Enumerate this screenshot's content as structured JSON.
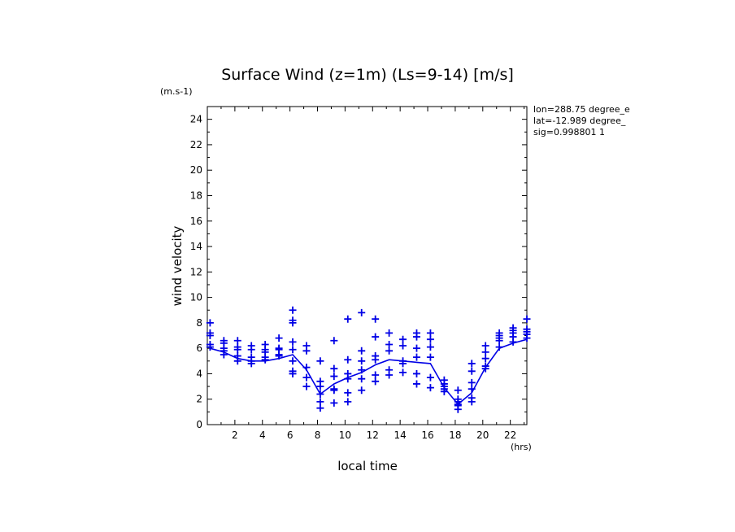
{
  "chart_data": {
    "type": "scatter",
    "title": "Surface Wind (z=1m) (Ls=9-14) [m/s]",
    "y_unit": "(m.s-1)",
    "x_unit": "(hrs)",
    "xlabel": "local time",
    "ylabel": "wind velocity",
    "info_lines": [
      "lon=288.75 degree_e",
      "lat=-12.989 degree_",
      "sig=0.998801 1"
    ],
    "xlim": [
      0,
      23.2
    ],
    "ylim": [
      0,
      25
    ],
    "x_ticks": [
      2,
      4,
      6,
      8,
      10,
      12,
      14,
      16,
      18,
      20,
      22
    ],
    "y_ticks": [
      0,
      2,
      4,
      6,
      8,
      10,
      12,
      14,
      16,
      18,
      20,
      22,
      24
    ],
    "grid": false,
    "color": "#0000e6",
    "series": [
      {
        "style": "line",
        "x": [
          0.2,
          1.2,
          2.2,
          3.2,
          4.2,
          5.2,
          6.2,
          7.2,
          8.2,
          9.2,
          10.2,
          11.2,
          12.2,
          13.2,
          14.2,
          15.2,
          16.2,
          17.2,
          18.2,
          19.2,
          20.2,
          21.2,
          22.2,
          23.2
        ],
        "y": [
          6.0,
          5.7,
          5.2,
          5.0,
          5.0,
          5.2,
          5.5,
          4.3,
          2.4,
          3.2,
          3.7,
          4.1,
          4.7,
          5.1,
          5.0,
          4.9,
          4.8,
          2.9,
          1.6,
          2.5,
          4.5,
          6.0,
          6.4,
          6.7
        ]
      },
      {
        "style": "markers",
        "x": [
          0.2,
          0.2,
          0.2,
          0.2,
          0.2,
          1.2,
          1.2,
          1.2,
          1.2,
          1.2,
          2.2,
          2.2,
          2.2,
          2.2,
          2.2,
          3.2,
          3.2,
          3.2,
          3.2,
          3.2,
          4.2,
          4.2,
          4.2,
          4.2,
          4.2,
          5.2,
          5.2,
          5.2,
          5.2,
          5.2,
          6.2,
          6.2,
          6.2,
          6.2,
          6.2,
          6.2,
          6.2,
          6.2,
          7.2,
          7.2,
          7.2,
          7.2,
          7.2,
          8.2,
          8.2,
          8.2,
          8.2,
          8.2,
          8.2,
          9.2,
          9.2,
          9.2,
          9.2,
          9.2,
          9.2,
          10.2,
          10.2,
          10.2,
          10.2,
          10.2,
          10.2,
          11.2,
          11.2,
          11.2,
          11.2,
          11.2,
          11.2,
          12.2,
          12.2,
          12.2,
          12.2,
          12.2,
          12.2,
          13.2,
          13.2,
          13.2,
          13.2,
          13.2,
          14.2,
          14.2,
          14.2,
          14.2,
          14.2,
          15.2,
          15.2,
          15.2,
          15.2,
          15.2,
          15.2,
          16.2,
          16.2,
          16.2,
          16.2,
          16.2,
          16.2,
          17.2,
          17.2,
          17.2,
          17.2,
          17.2,
          18.2,
          18.2,
          18.2,
          18.2,
          18.2,
          18.2,
          19.2,
          19.2,
          19.2,
          19.2,
          19.2,
          19.2,
          20.2,
          20.2,
          20.2,
          20.2,
          20.2,
          21.2,
          21.2,
          21.2,
          21.2,
          21.2,
          22.2,
          22.2,
          22.2,
          22.2,
          22.2,
          23.2,
          23.2,
          23.2,
          23.2,
          23.2
        ],
        "y": [
          8.0,
          7.2,
          7.0,
          6.3,
          6.1,
          6.6,
          6.4,
          6.0,
          5.8,
          5.5,
          6.6,
          6.1,
          5.9,
          5.4,
          5.0,
          6.2,
          5.9,
          5.3,
          5.0,
          4.8,
          6.3,
          5.9,
          5.7,
          5.3,
          5.1,
          6.8,
          6.0,
          5.9,
          5.5,
          5.4,
          9.0,
          8.2,
          8.0,
          6.5,
          5.9,
          5.0,
          4.2,
          4.0,
          6.2,
          5.8,
          4.5,
          3.7,
          3.0,
          5.0,
          3.4,
          3.0,
          2.4,
          1.8,
          1.3,
          6.6,
          4.4,
          3.8,
          2.8,
          2.7,
          1.7,
          8.3,
          5.1,
          4.0,
          3.6,
          2.5,
          1.8,
          8.8,
          5.8,
          5.0,
          4.3,
          3.6,
          2.7,
          8.3,
          6.9,
          5.4,
          5.1,
          3.9,
          3.4,
          7.2,
          6.3,
          5.8,
          4.3,
          3.9,
          6.7,
          6.2,
          5.0,
          4.8,
          4.1,
          7.2,
          6.9,
          6.0,
          5.3,
          4.0,
          3.2,
          7.2,
          6.7,
          6.1,
          5.3,
          3.7,
          2.9,
          3.5,
          3.2,
          3.0,
          2.8,
          2.6,
          2.7,
          2.0,
          1.8,
          1.6,
          1.5,
          1.2,
          4.8,
          4.2,
          3.3,
          2.8,
          2.1,
          1.8,
          6.2,
          5.7,
          5.2,
          4.6,
          4.4,
          7.2,
          7.0,
          6.8,
          6.6,
          6.1,
          7.6,
          7.4,
          7.2,
          6.9,
          6.5,
          8.3,
          7.5,
          7.3,
          7.1,
          6.8
        ]
      }
    ]
  }
}
